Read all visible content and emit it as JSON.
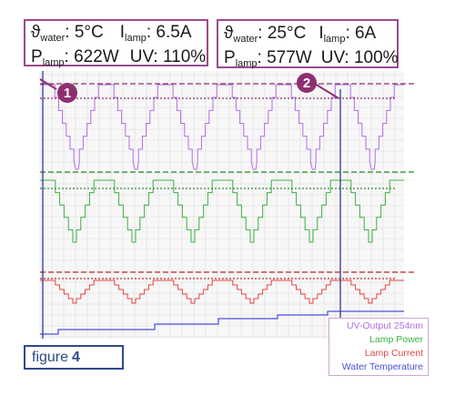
{
  "colors": {
    "uv": "#b36ee6",
    "power": "#3cb043",
    "current": "#e64646",
    "temperature": "#4a50d8",
    "marker": "#8e2f6f",
    "callout_border": "#9b4a8f",
    "grid": "#dcdcdc"
  },
  "callouts": [
    {
      "marker": "1",
      "theta": "ϑ",
      "theta_sub": "water",
      "theta_value": ": 5°C",
      "i": "I",
      "i_sub": "lamp",
      "i_value": ": 6.5A",
      "p": "P",
      "p_sub": "lamp",
      "p_value": ": 622W",
      "uv": "UV: 110%"
    },
    {
      "marker": "2",
      "theta": "ϑ",
      "theta_sub": "water",
      "theta_value": ": 25°C",
      "i": "I",
      "i_sub": "lamp",
      "i_value": ": 6A",
      "p": "P",
      "p_sub": "lamp",
      "p_value": ": 577W",
      "uv": "UV: 100%"
    }
  ],
  "figure": {
    "label": "figure",
    "number": "4"
  },
  "chart_data": {
    "type": "line",
    "title": "",
    "grid": true,
    "legend_position": "bottom-right",
    "series": [
      {
        "name": "UV-Output 254nm",
        "label": "UV-Output 254nm",
        "reference_levels": {
          "max": 1.1,
          "after_warmup": 1.0
        }
      },
      {
        "name": "Lamp Power",
        "label": "Lamp Power"
      },
      {
        "name": "Lamp Current",
        "label": "Lamp Current"
      },
      {
        "name": "Water Temperature",
        "label": "Water Temperature"
      }
    ]
  }
}
